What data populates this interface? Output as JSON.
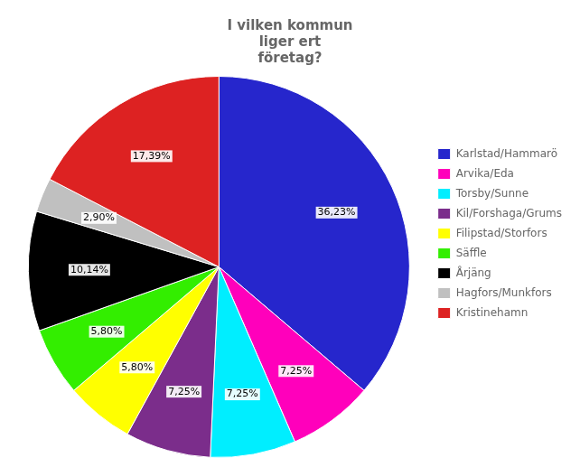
{
  "chart_data": {
    "type": "pie",
    "title": "I vilken kommun\nliger ert\nföretag?",
    "categories": [
      "Karlstad/Hammarö",
      "Arvika/Eda",
      "Torsby/Sunne",
      "Kil/Forshaga/Grums",
      "Filipstad/Storfors",
      "Säffle",
      "Årjäng",
      "Hagfors/Munkfors",
      "Kristinehamn"
    ],
    "values": [
      36.23,
      7.25,
      7.25,
      7.25,
      5.8,
      5.8,
      10.14,
      2.9,
      17.39
    ],
    "value_labels": [
      "36,23%",
      "7,25%",
      "7,25%",
      "7,25%",
      "5,80%",
      "5,80%",
      "10,14%",
      "2,90%",
      "17,39%"
    ],
    "colors": [
      "#2626cc",
      "#ff00bb",
      "#00eeff",
      "#7b2d8b",
      "#ffff00",
      "#33ee00",
      "#000000",
      "#c0c0c0",
      "#dd2222"
    ],
    "data_labels": true,
    "legend": "right"
  }
}
